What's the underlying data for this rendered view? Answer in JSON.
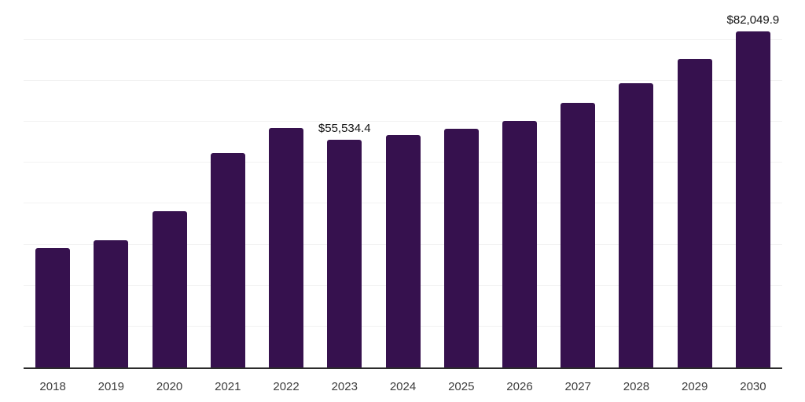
{
  "chart": {
    "background_color": "#ffffff",
    "bar_color": "#36114e",
    "gridline_color": "#f2f2f2",
    "axis_line_color": "#2b2b2b",
    "tick_label_color": "#3d3d3d",
    "value_label_color": "#111111"
  },
  "chart_data": {
    "type": "bar",
    "title": "",
    "xlabel": "",
    "ylabel": "",
    "categories": [
      "2018",
      "2019",
      "2020",
      "2021",
      "2022",
      "2023",
      "2024",
      "2025",
      "2026",
      "2027",
      "2028",
      "2029",
      "2030"
    ],
    "values": [
      29100,
      31100,
      38200,
      52400,
      58600,
      55534.4,
      56800,
      58300,
      60300,
      64600,
      69500,
      75300,
      82049.9
    ],
    "value_labels": [
      "",
      "",
      "",
      "",
      "",
      "$55,534.4",
      "",
      "",
      "",
      "",
      "",
      "",
      "$82,049.9"
    ],
    "ylim": [
      0,
      90150
    ],
    "gridline_step": 10000,
    "grid": "horizontal-only",
    "legend": "none",
    "y_axis_tick_labels_visible": false
  }
}
